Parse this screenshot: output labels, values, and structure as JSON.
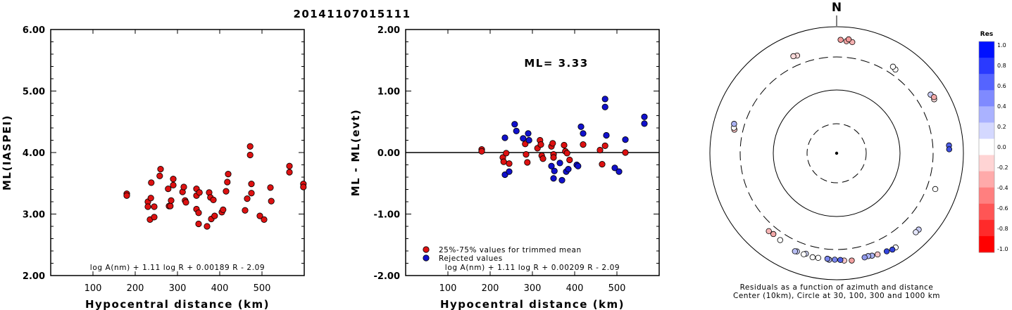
{
  "title": "20141107015111",
  "chart_data": [
    {
      "type": "scatter",
      "xlabel": "Hypocentral distance (km)",
      "ylabel": "ML(IASPEI)",
      "xlim": [
        0,
        600
      ],
      "ylim": [
        2.0,
        6.0
      ],
      "xticks": [
        100,
        200,
        300,
        400,
        500
      ],
      "yticks": [
        "2.00",
        "3.00",
        "4.00",
        "5.00",
        "6.00"
      ],
      "formula": "log A(nm) + 1.11 log R + 0.00189 R - 2.09",
      "marker_color": "#dd1111",
      "points": [
        [
          180,
          3.33
        ],
        [
          180,
          3.3
        ],
        [
          230,
          3.2
        ],
        [
          230,
          3.12
        ],
        [
          235,
          2.91
        ],
        [
          237,
          3.26
        ],
        [
          238,
          3.51
        ],
        [
          245,
          2.95
        ],
        [
          245,
          3.12
        ],
        [
          258,
          3.62
        ],
        [
          260,
          3.73
        ],
        [
          278,
          3.41
        ],
        [
          280,
          3.13
        ],
        [
          283,
          3.13
        ],
        [
          285,
          3.22
        ],
        [
          290,
          3.47
        ],
        [
          290,
          3.57
        ],
        [
          312,
          3.36
        ],
        [
          315,
          3.44
        ],
        [
          318,
          3.22
        ],
        [
          320,
          3.19
        ],
        [
          345,
          3.41
        ],
        [
          345,
          3.3
        ],
        [
          345,
          3.08
        ],
        [
          350,
          3.02
        ],
        [
          350,
          2.84
        ],
        [
          352,
          3.35
        ],
        [
          370,
          2.8
        ],
        [
          375,
          3.35
        ],
        [
          378,
          3.27
        ],
        [
          380,
          2.92
        ],
        [
          385,
          3.23
        ],
        [
          388,
          2.97
        ],
        [
          405,
          3.03
        ],
        [
          408,
          3.07
        ],
        [
          415,
          3.37
        ],
        [
          418,
          3.52
        ],
        [
          420,
          3.65
        ],
        [
          460,
          3.06
        ],
        [
          465,
          3.25
        ],
        [
          472,
          4.1
        ],
        [
          472,
          3.96
        ],
        [
          475,
          3.49
        ],
        [
          475,
          3.34
        ],
        [
          495,
          2.97
        ],
        [
          505,
          2.91
        ],
        [
          520,
          3.43
        ],
        [
          522,
          3.21
        ],
        [
          565,
          3.78
        ],
        [
          565,
          3.68
        ],
        [
          598,
          3.49
        ],
        [
          598,
          3.44
        ]
      ]
    },
    {
      "type": "scatter",
      "xlabel": "Hypocentral distance (km)",
      "ylabel": "ML - ML(evt)",
      "xlim": [
        0,
        600
      ],
      "ylim": [
        -2.0,
        2.0
      ],
      "xticks": [
        100,
        200,
        300,
        400,
        500
      ],
      "yticks": [
        "-2.00",
        "-1.00",
        "0.00",
        "1.00",
        "2.00"
      ],
      "annotation": "ML= 3.33",
      "formula": "log A(nm) + 1.11 log R + 0.00209 R - 2.09",
      "series": [
        {
          "name": "25%-75% values for trimmed mean",
          "color": "#dd1111",
          "points": [
            [
              180,
              0.05
            ],
            [
              180,
              0.02
            ],
            [
              230,
              -0.08
            ],
            [
              232,
              -0.15
            ],
            [
              238,
              -0.01
            ],
            [
              245,
              -0.18
            ],
            [
              283,
              0.14
            ],
            [
              285,
              -0.03
            ],
            [
              288,
              -0.16
            ],
            [
              312,
              0.07
            ],
            [
              318,
              0.2
            ],
            [
              320,
              0.13
            ],
            [
              322,
              -0.05
            ],
            [
              325,
              -0.1
            ],
            [
              345,
              0.1
            ],
            [
              348,
              0.15
            ],
            [
              350,
              -0.03
            ],
            [
              350,
              -0.08
            ],
            [
              375,
              0.12
            ],
            [
              378,
              0.02
            ],
            [
              382,
              -0.01
            ],
            [
              388,
              -0.12
            ],
            [
              420,
              0.13
            ],
            [
              460,
              0.04
            ],
            [
              465,
              -0.19
            ],
            [
              472,
              0.11
            ],
            [
              520,
              0.0
            ]
          ]
        },
        {
          "name": "Rejected values",
          "color": "#1111cc",
          "points": [
            [
              235,
              0.24
            ],
            [
              235,
              -0.36
            ],
            [
              245,
              -0.31
            ],
            [
              258,
              0.46
            ],
            [
              262,
              0.35
            ],
            [
              278,
              0.23
            ],
            [
              290,
              0.31
            ],
            [
              292,
              0.2
            ],
            [
              345,
              -0.22
            ],
            [
              350,
              -0.42
            ],
            [
              352,
              -0.3
            ],
            [
              365,
              -0.17
            ],
            [
              370,
              -0.45
            ],
            [
              380,
              -0.31
            ],
            [
              385,
              -0.27
            ],
            [
              405,
              -0.2
            ],
            [
              408,
              -0.22
            ],
            [
              415,
              0.42
            ],
            [
              420,
              0.31
            ],
            [
              472,
              0.87
            ],
            [
              472,
              0.74
            ],
            [
              475,
              0.28
            ],
            [
              495,
              -0.25
            ],
            [
              505,
              -0.31
            ],
            [
              520,
              0.21
            ],
            [
              565,
              0.58
            ],
            [
              565,
              0.47
            ]
          ]
        }
      ]
    },
    {
      "type": "polar-scatter",
      "north_label": "N",
      "caption": [
        "Residuals as a function of azimuth and distance",
        "Center (10km), Circle at 30, 100, 300 and 1000 km"
      ],
      "colorbar": {
        "title": "Res",
        "labels": [
          "1.0",
          "0.8",
          "0.6",
          "0.4",
          "0.2",
          "0.0",
          "-0.2",
          "-0.4",
          "-0.6",
          "-0.8",
          "-1.0"
        ],
        "colors": [
          "#0010ff",
          "#2a3aff",
          "#5564ff",
          "#7f8aff",
          "#aab2ff",
          "#d4d8ff",
          "#ffffff",
          "#ffd4d4",
          "#ffaaaa",
          "#ff7f7f",
          "#ff5555",
          "#ff2a2a",
          "#ff0000"
        ]
      },
      "stations_residual_fill": [
        {
          "az": 5,
          "dist": 570,
          "fill": "#f4a6a6"
        },
        {
          "az": 8,
          "dist": 565,
          "fill": "#f5b0b0"
        },
        {
          "az": 2,
          "dist": 595,
          "fill": "#f29a9a"
        },
        {
          "az": 6,
          "dist": 620,
          "fill": "#f29a9a"
        },
        {
          "az": 338,
          "dist": 430,
          "fill": "#fbdada"
        },
        {
          "az": 336,
          "dist": 445,
          "fill": "#fbdada"
        },
        {
          "az": 35,
          "dist": 380,
          "fill": "#ffffff"
        },
        {
          "az": 33,
          "dist": 395,
          "fill": "#ffffff"
        },
        {
          "az": 58,
          "dist": 530,
          "fill": "#c8ccf5"
        },
        {
          "az": 61,
          "dist": 545,
          "fill": "#fde0e0"
        },
        {
          "az": 60,
          "dist": 565,
          "fill": "#f2a8a8"
        },
        {
          "az": 86,
          "dist": 570,
          "fill": "#4d5de6"
        },
        {
          "az": 88,
          "dist": 570,
          "fill": "#3f50e0"
        },
        {
          "az": 110,
          "dist": 420,
          "fill": "#ffffff"
        },
        {
          "az": 133,
          "dist": 560,
          "fill": "#c8ccf5"
        },
        {
          "az": 135,
          "dist": 555,
          "fill": "#e4e6fb"
        },
        {
          "az": 148,
          "dist": 540,
          "fill": "#ffffff"
        },
        {
          "az": 150,
          "dist": 545,
          "fill": "#3344dd"
        },
        {
          "az": 153,
          "dist": 520,
          "fill": "#3344dd"
        },
        {
          "az": 158,
          "dist": 500,
          "fill": "#f5c4c4"
        },
        {
          "az": 161,
          "dist": 485,
          "fill": "#aab2f2"
        },
        {
          "az": 163,
          "dist": 470,
          "fill": "#aab2f2"
        },
        {
          "az": 165,
          "dist": 475,
          "fill": "#8f98ea"
        },
        {
          "az": 172,
          "dist": 485,
          "fill": "#f2a0a0"
        },
        {
          "az": 176,
          "dist": 470,
          "fill": "#f8c8c8"
        },
        {
          "az": 178,
          "dist": 455,
          "fill": "#5260e4"
        },
        {
          "az": 181,
          "dist": 450,
          "fill": "#7a86ec"
        },
        {
          "az": 184,
          "dist": 455,
          "fill": "#b8bef3"
        },
        {
          "az": 185,
          "dist": 440,
          "fill": "#7a86ec"
        },
        {
          "az": 190,
          "dist": 445,
          "fill": "#ffffff"
        },
        {
          "az": 193,
          "dist": 455,
          "fill": "#ffffff"
        },
        {
          "az": 197,
          "dist": 425,
          "fill": "#d0d4f7"
        },
        {
          "az": 198,
          "dist": 445,
          "fill": "#ffffff"
        },
        {
          "az": 202,
          "dist": 440,
          "fill": "#c8ccf5"
        },
        {
          "az": 203,
          "dist": 450,
          "fill": "#b8bef3"
        },
        {
          "az": 213,
          "dist": 400,
          "fill": "#ffffff"
        },
        {
          "az": 218,
          "dist": 385,
          "fill": "#f2a8a8"
        },
        {
          "az": 221,
          "dist": 395,
          "fill": "#f7b5b5"
        },
        {
          "az": 283,
          "dist": 420,
          "fill": "#f5c0c0"
        },
        {
          "az": 284,
          "dist": 437,
          "fill": "#ffffff"
        },
        {
          "az": 286,
          "dist": 450,
          "fill": "#aab2f2"
        }
      ]
    }
  ]
}
